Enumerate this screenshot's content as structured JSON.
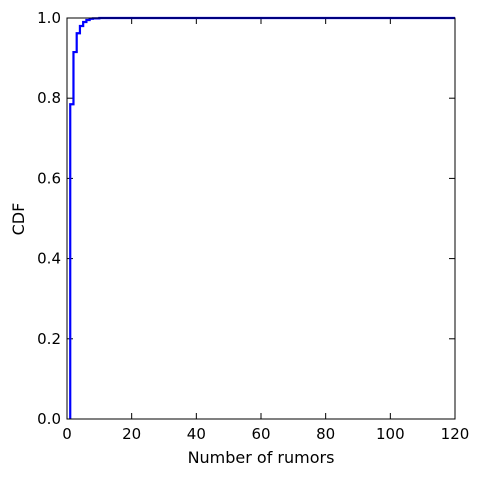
{
  "chart_data": {
    "type": "line",
    "xlabel": "Number of rumors",
    "ylabel": "CDF",
    "xlim": [
      0,
      120
    ],
    "ylim": [
      0,
      1.0
    ],
    "x_ticks": [
      "0",
      "20",
      "40",
      "60",
      "80",
      "100",
      "120"
    ],
    "y_ticks": [
      "0.0",
      "0.2",
      "0.4",
      "0.6",
      "0.8",
      "1.0"
    ],
    "grid": false,
    "legend": "none",
    "series": [
      {
        "color": "#0000ff",
        "step": true,
        "x": [
          1,
          2,
          3,
          4,
          5,
          6,
          7,
          8,
          10
        ],
        "y": [
          0.785,
          0.915,
          0.962,
          0.98,
          0.99,
          0.995,
          0.998,
          0.999,
          1.0
        ]
      }
    ]
  }
}
